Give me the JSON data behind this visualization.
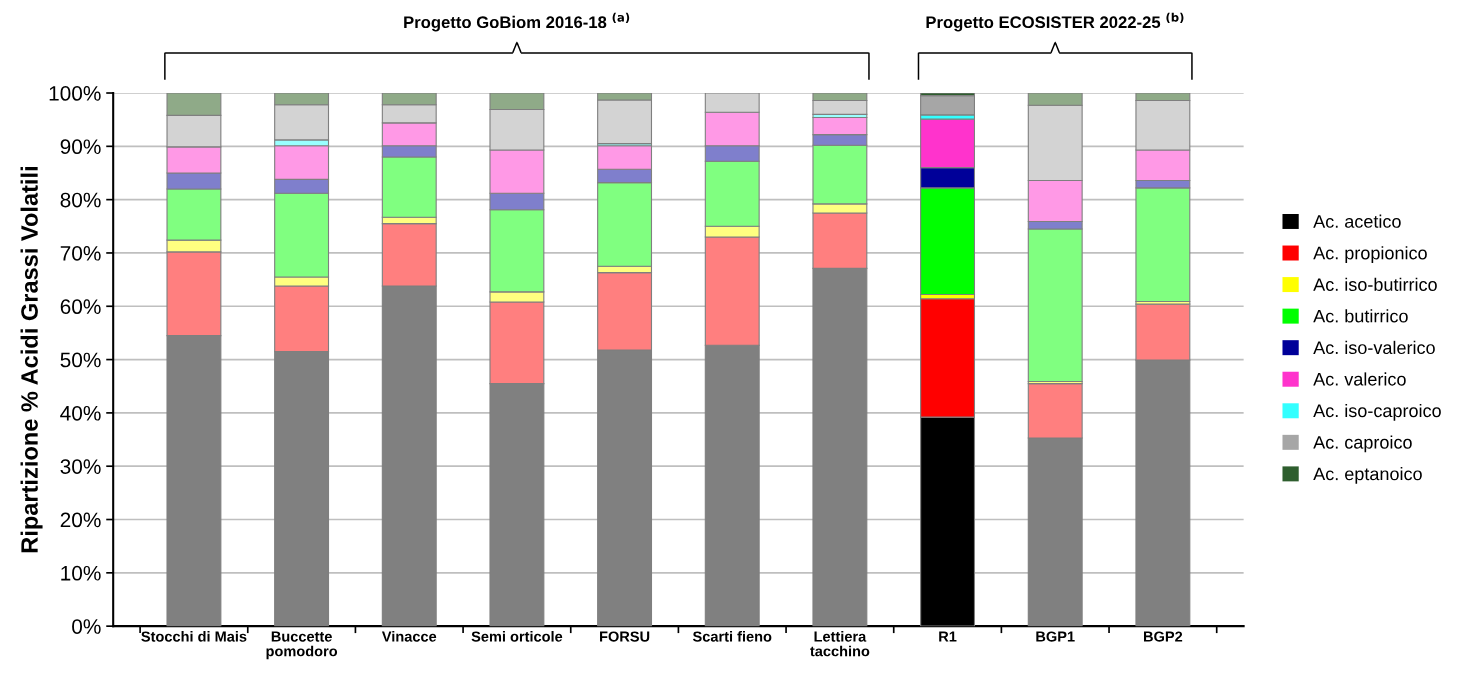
{
  "chart_data": {
    "type": "bar",
    "stacked": true,
    "ylabel": "Ripartizione % Acidi Grassi Volatili",
    "categories": [
      "Stocchi di Mais",
      "Buccette\npomodoro",
      "Vinacce",
      "Semi orticole",
      "FORSU",
      "Scarti fieno",
      "Lettiera\ntacchino",
      "R1",
      "BGP1",
      "BGP2"
    ],
    "series": [
      {
        "name": "Ac. acetico",
        "color": "#000000",
        "colors": [
          "#808080",
          "#808080",
          "#808080",
          "#808080",
          "#808080",
          "#808080",
          "#808080",
          "#000000",
          "#808080",
          "#808080"
        ],
        "values": [
          54.5,
          51.5,
          63.8,
          45.5,
          51.8,
          52.7,
          67.1,
          39.2,
          35.3,
          49.9
        ]
      },
      {
        "name": "Ac. propionico",
        "color": "#ff0000",
        "colors": [
          "#ff7f7f",
          "#ff7f7f",
          "#ff7f7f",
          "#ff7f7f",
          "#ff7f7f",
          "#ff7f7f",
          "#ff7f7f",
          "#ff0000",
          "#ff7f7f",
          "#ff7f7f"
        ],
        "values": [
          15.7,
          12.3,
          11.7,
          15.3,
          14.5,
          20.3,
          10.4,
          22.2,
          10.2,
          10.5
        ]
      },
      {
        "name": "Ac. iso-butirrico",
        "color": "#ffff00",
        "colors": [
          "#ffff80",
          "#ffff80",
          "#ffff80",
          "#ffff80",
          "#ffff80",
          "#ffff80",
          "#ffff80",
          "#ffff00",
          "#ffff80",
          "#ffff80"
        ],
        "values": [
          2.2,
          1.7,
          1.2,
          1.9,
          1.2,
          2.0,
          1.7,
          0.8,
          0.4,
          0.5
        ]
      },
      {
        "name": "Ac. butirrico",
        "color": "#00ff00",
        "colors": [
          "#80ff80",
          "#80ff80",
          "#80ff80",
          "#80ff80",
          "#80ff80",
          "#80ff80",
          "#80ff80",
          "#00ff00",
          "#80ff80",
          "#80ff80"
        ],
        "values": [
          9.6,
          15.7,
          11.3,
          15.4,
          15.7,
          12.2,
          11.0,
          20.0,
          28.6,
          21.3
        ]
      },
      {
        "name": "Ac. iso-valerico",
        "color": "#000099",
        "colors": [
          "#7f7fcc",
          "#7f7fcc",
          "#7f7fcc",
          "#7f7fcc",
          "#7f7fcc",
          "#7f7fcc",
          "#7f7fcc",
          "#000099",
          "#7f7fcc",
          "#7f7fcc"
        ],
        "values": [
          3.0,
          2.6,
          2.1,
          3.1,
          2.5,
          2.9,
          2.0,
          3.8,
          1.4,
          1.4
        ]
      },
      {
        "name": "Ac. valerico",
        "color": "#ff33cc",
        "colors": [
          "#ff99e6",
          "#ff99e6",
          "#ff99e6",
          "#ff99e6",
          "#ff99e6",
          "#ff99e6",
          "#ff99e6",
          "#ff33cc",
          "#ff99e6",
          "#ff99e6"
        ],
        "values": [
          4.9,
          6.3,
          4.3,
          8.1,
          4.4,
          6.3,
          3.2,
          9.1,
          7.7,
          5.7
        ]
      },
      {
        "name": "Ac. iso-caproico",
        "color": "#33ffff",
        "colors": [
          "#99ffff",
          "#99ffff",
          "#99ffff",
          "#99ffff",
          "#99ffff",
          "#99ffff",
          "#99ffff",
          "#33ffff",
          "#99ffff",
          "#99ffff"
        ],
        "values": [
          null,
          1.1,
          null,
          null,
          0.4,
          null,
          0.6,
          0.8,
          null,
          null
        ]
      },
      {
        "name": "Ac. caproico",
        "color": "#a6a6a6",
        "colors": [
          "#d3d3d3",
          "#d3d3d3",
          "#d3d3d3",
          "#d3d3d3",
          "#d3d3d3",
          "#d3d3d3",
          "#d3d3d3",
          "#a6a6a6",
          "#d3d3d3",
          "#d3d3d3"
        ],
        "values": [
          5.9,
          6.6,
          3.4,
          7.6,
          8.2,
          3.6,
          2.6,
          3.6,
          14.1,
          9.3
        ]
      },
      {
        "name": "Ac. eptanoico",
        "color": "#2e5e2e",
        "colors": [
          "#8faa88",
          "#8faa88",
          "#8faa88",
          "#8faa88",
          "#8faa88",
          "#8faa88",
          "#8faa88",
          "#2e5e2e",
          "#8faa88",
          "#8faa88"
        ],
        "values": [
          4.2,
          2.2,
          2.2,
          3.1,
          1.3,
          null,
          1.4,
          0.5,
          2.3,
          1.4
        ]
      }
    ],
    "ylim": [
      0,
      100
    ],
    "yticks": [
      {
        "value": 0,
        "label": "0%"
      },
      {
        "value": 10,
        "label": "10%"
      },
      {
        "value": 20,
        "label": "20%"
      },
      {
        "value": 30,
        "label": "30%"
      },
      {
        "value": 40,
        "label": "40%"
      },
      {
        "value": 50,
        "label": "50%"
      },
      {
        "value": 60,
        "label": "60%"
      },
      {
        "value": 70,
        "label": "70%"
      },
      {
        "value": 80,
        "label": "80%"
      },
      {
        "value": 90,
        "label": "90%"
      },
      {
        "value": 100,
        "label": "100%"
      }
    ],
    "grid": "y",
    "legend": "right",
    "annotations": [
      "Progetto GoBiom 2016-18 $^{(a)}$",
      "Progetto ECOSISTER 2022-25 $^{(b)}$"
    ]
  }
}
